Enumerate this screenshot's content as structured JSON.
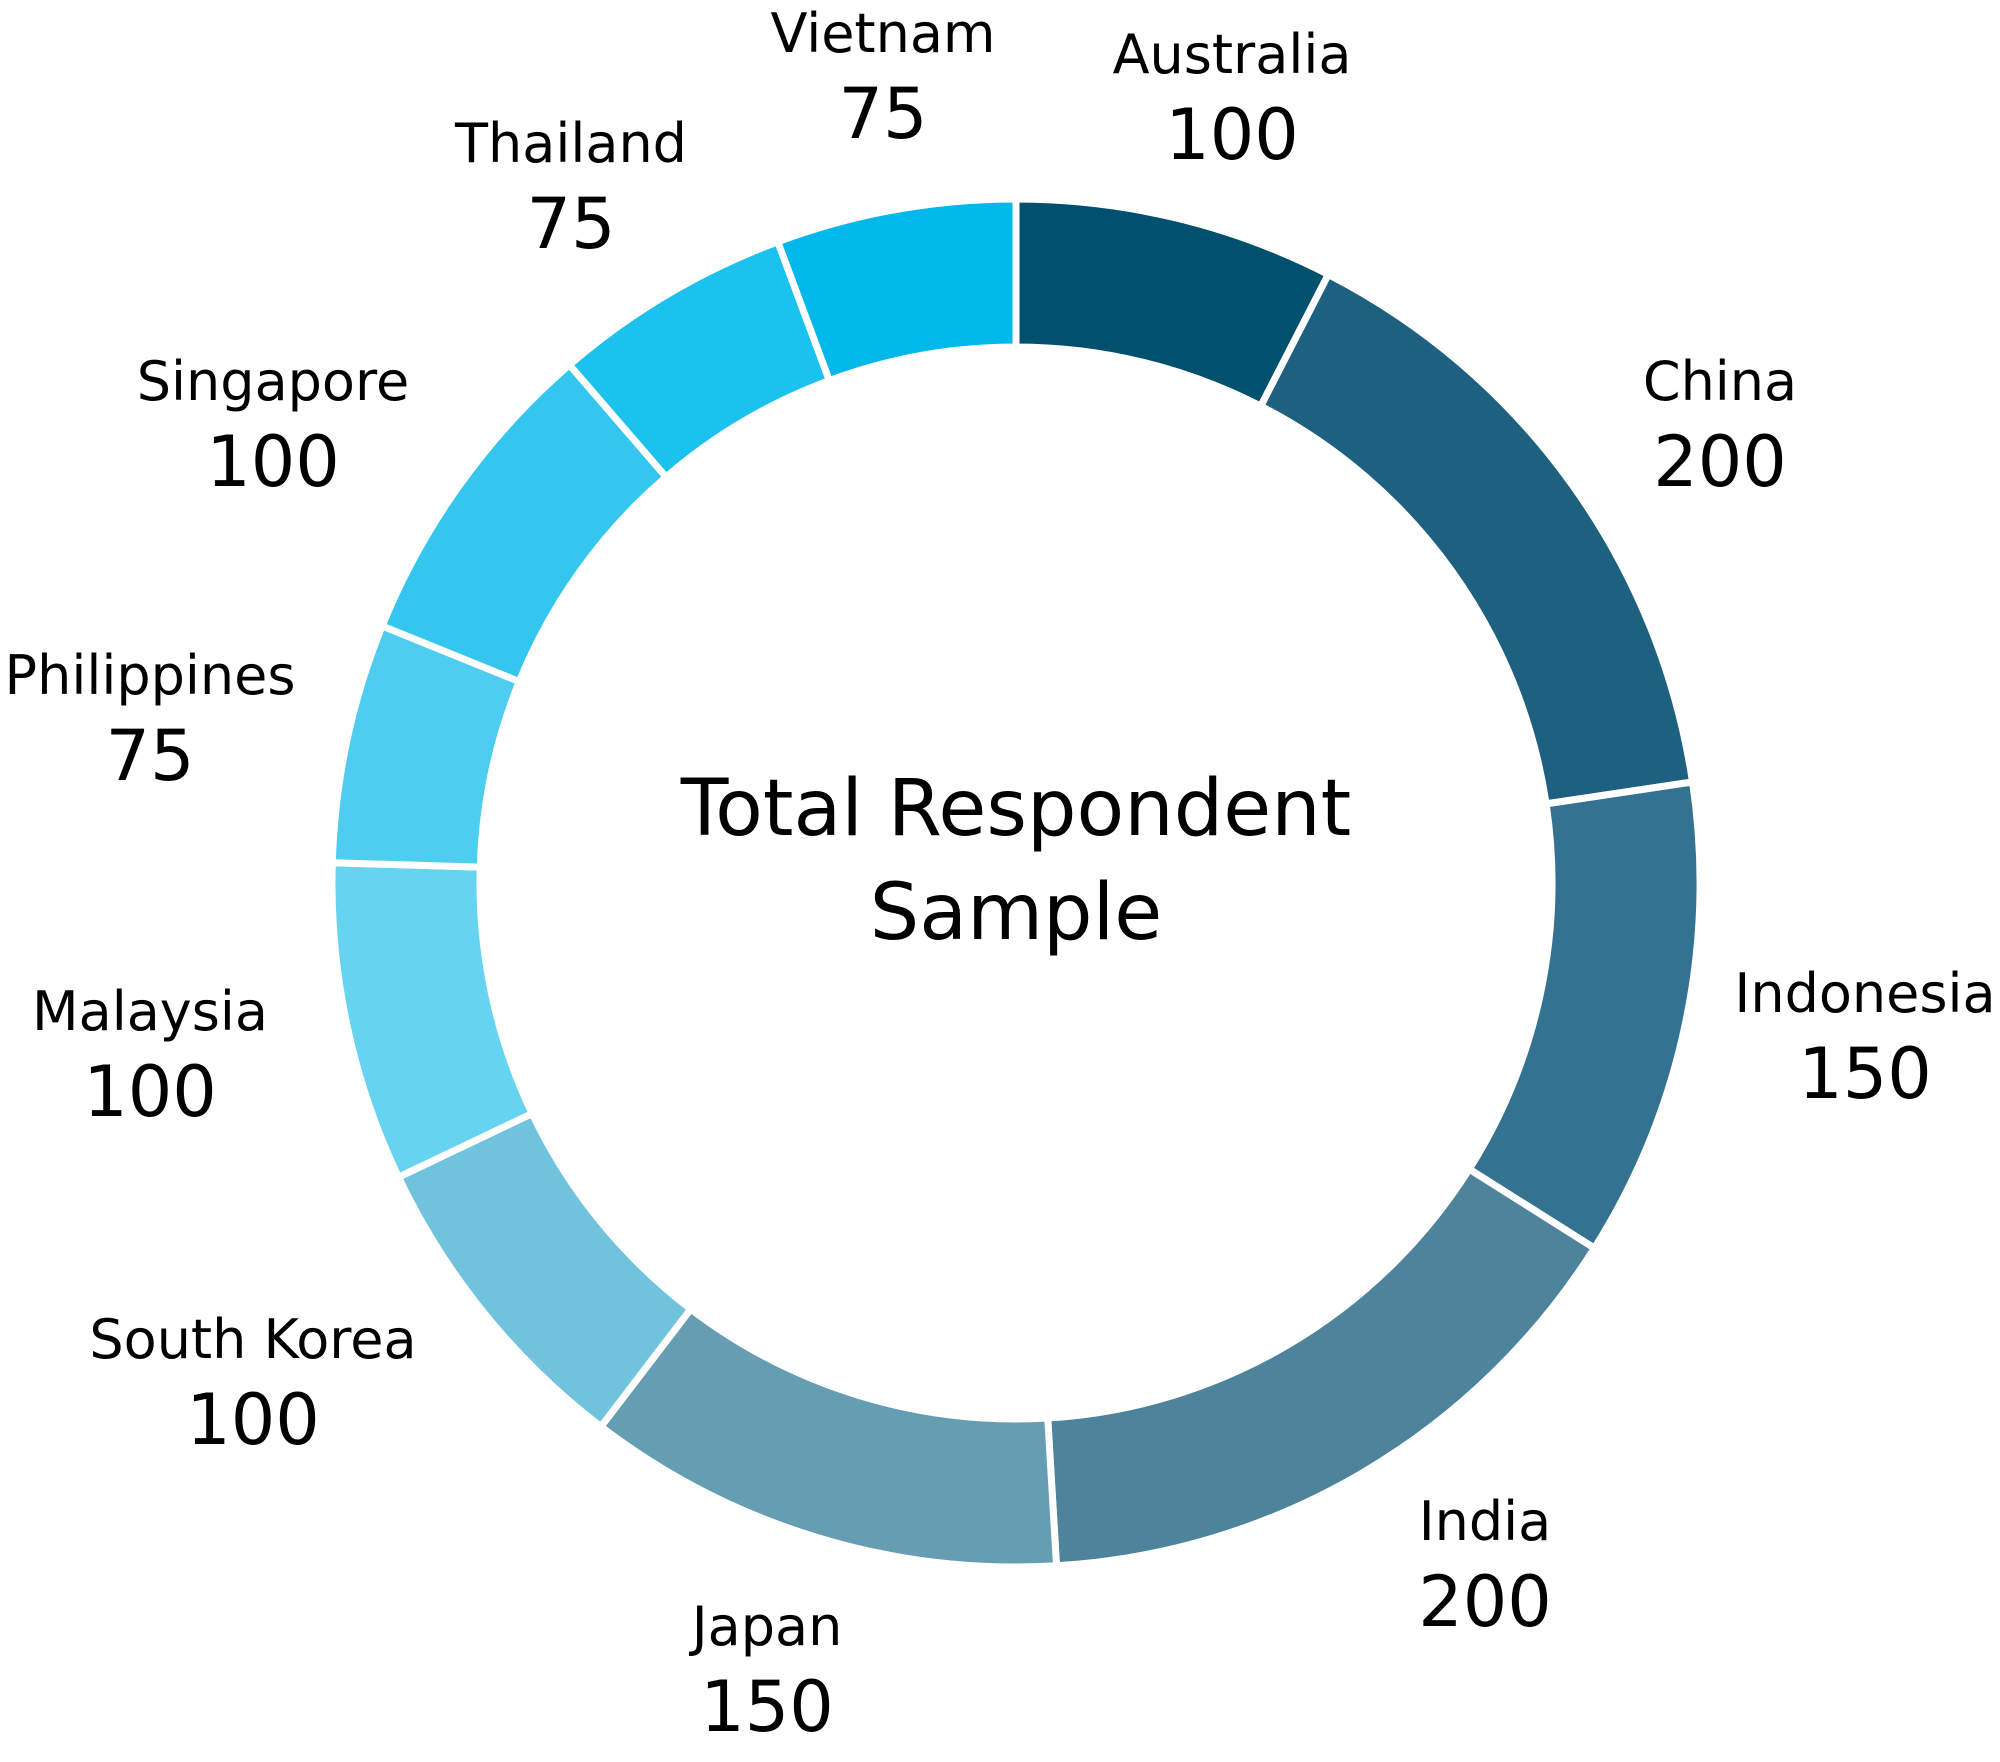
{
  "chart_data": {
    "type": "pie",
    "title": "Total Respondent Sample",
    "title_lines": [
      "Total Respondent",
      "Sample"
    ],
    "slices": [
      {
        "label": "Australia",
        "value": 100,
        "color": "#00506E"
      },
      {
        "label": "China",
        "value": 200,
        "color": "#1E607F"
      },
      {
        "label": "Indonesia",
        "value": 150,
        "color": "#337290"
      },
      {
        "label": "India",
        "value": 200,
        "color": "#4E839C"
      },
      {
        "label": "Japan",
        "value": 150,
        "color": "#659DB2"
      },
      {
        "label": "South Korea",
        "value": 100,
        "color": "#70C3DC"
      },
      {
        "label": "Malaysia",
        "value": 100,
        "color": "#66D4F1"
      },
      {
        "label": "Philippines",
        "value": 75,
        "color": "#4ECDF0"
      },
      {
        "label": "Singapore",
        "value": 100,
        "color": "#34C6EE"
      },
      {
        "label": "Thailand",
        "value": 75,
        "color": "#1BC2EE"
      },
      {
        "label": "Vietnam",
        "value": 75,
        "color": "#00B8E9"
      }
    ],
    "legend": "none"
  }
}
